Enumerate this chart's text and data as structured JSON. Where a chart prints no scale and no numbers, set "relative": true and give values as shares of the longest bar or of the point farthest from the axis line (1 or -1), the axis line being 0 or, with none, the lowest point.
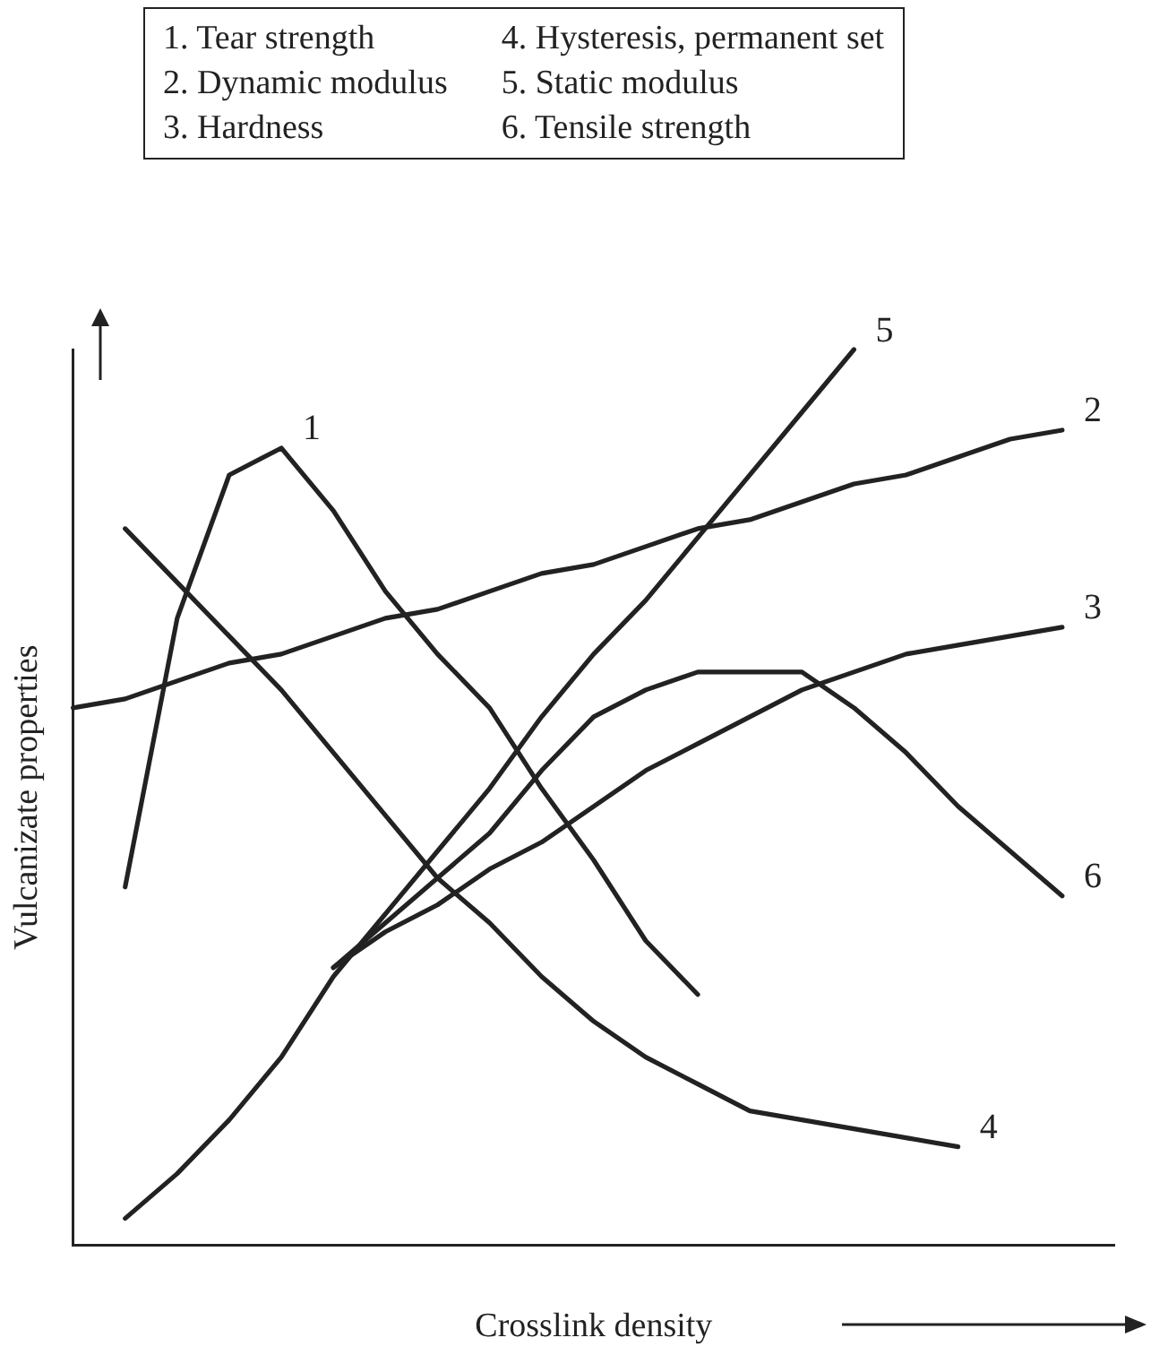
{
  "chart_data": {
    "type": "line",
    "relative": true,
    "xlabel": "Crosslink density",
    "ylabel": "Vulcanizate properties",
    "grid": false,
    "marker": "none",
    "line_style": "solid",
    "categories": [
      null,
      null,
      null,
      null,
      null,
      null,
      null,
      null,
      null,
      null,
      null,
      null,
      null,
      null,
      null,
      null,
      null,
      null,
      null,
      null,
      null
    ],
    "series": [
      {
        "name": "1",
        "color": "#222222",
        "values": [
          null,
          0.4,
          0.7,
          0.86,
          0.89,
          0.82,
          0.73,
          0.66,
          0.6,
          0.51,
          0.43,
          0.34,
          0.28,
          null,
          null,
          null,
          null,
          null,
          null,
          null,
          null
        ]
      },
      {
        "name": "2",
        "color": "#222222",
        "values": [
          0.6,
          0.61,
          0.63,
          0.65,
          0.66,
          0.68,
          0.7,
          0.71,
          0.73,
          0.75,
          0.76,
          0.78,
          0.8,
          0.81,
          0.83,
          0.85,
          0.86,
          0.88,
          0.9,
          0.91,
          null
        ]
      },
      {
        "name": "3",
        "color": "#222222",
        "values": [
          null,
          null,
          null,
          null,
          null,
          0.31,
          0.35,
          0.38,
          0.42,
          0.45,
          0.49,
          0.53,
          0.56,
          0.59,
          0.62,
          0.64,
          0.66,
          0.67,
          0.68,
          0.69,
          null
        ]
      },
      {
        "name": "4",
        "color": "#222222",
        "values": [
          null,
          0.8,
          0.74,
          0.68,
          0.62,
          0.55,
          0.48,
          0.41,
          0.36,
          0.3,
          0.25,
          0.21,
          0.18,
          0.15,
          0.14,
          0.13,
          0.12,
          0.11,
          null,
          null,
          null
        ]
      },
      {
        "name": "5",
        "color": "#222222",
        "values": [
          null,
          0.03,
          0.08,
          0.14,
          0.21,
          0.3,
          0.37,
          0.44,
          0.51,
          0.59,
          0.66,
          0.72,
          0.79,
          0.86,
          0.93,
          1,
          null,
          null,
          null,
          null,
          null
        ]
      },
      {
        "name": "6",
        "color": "#222222",
        "values": [
          null,
          null,
          null,
          null,
          null,
          0.31,
          0.36,
          0.41,
          0.46,
          0.53,
          0.59,
          0.62,
          0.64,
          0.64,
          0.64,
          0.6,
          0.55,
          0.49,
          0.44,
          0.39,
          null
        ]
      }
    ],
    "annotations": [
      "1. Tear strength",
      "2. Dynamic modulus",
      "3. Hardness",
      "4. Hysteresis, permanent set",
      "5. Static modulus",
      "6. Tensile strength"
    ]
  }
}
